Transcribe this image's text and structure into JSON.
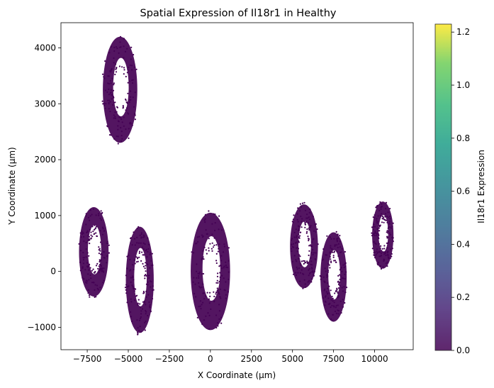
{
  "chart_data": {
    "type": "scatter",
    "title": "Spatial Expression of Il18r1 in Healthy",
    "xlabel": "X Coordinate (µm)",
    "ylabel": "Y Coordinate (µm)",
    "xlim": [
      -9100,
      12350
    ],
    "ylim": [
      -1400,
      4450
    ],
    "xticks": [
      -7500,
      -5000,
      -2500,
      0,
      2500,
      5000,
      7500,
      10000
    ],
    "xtick_labels": [
      "−7500",
      "−5000",
      "−2500",
      "0",
      "2500",
      "5000",
      "7500",
      "10000"
    ],
    "yticks": [
      -1000,
      0,
      1000,
      2000,
      3000,
      4000
    ],
    "ytick_labels": [
      "−1000",
      "0",
      "1000",
      "2000",
      "3000",
      "4000"
    ],
    "grid": false,
    "colorbar": {
      "label": "Il18r1 Expression",
      "range": [
        0,
        1.23
      ],
      "ticks": [
        0.0,
        0.2,
        0.4,
        0.6,
        0.8,
        1.0,
        1.2
      ],
      "tick_labels": [
        "0.0",
        "0.2",
        "0.4",
        "0.6",
        "0.8",
        "1.0",
        "1.2"
      ],
      "colormap": "viridis"
    },
    "point_color": "#440154",
    "expression_value": 0.0,
    "tissue_sections": [
      {
        "cx": -5500,
        "cy": 3250,
        "rx": 1050,
        "ry": 950
      },
      {
        "cx": -7100,
        "cy": 350,
        "rx": 900,
        "ry": 800
      },
      {
        "cx": -4300,
        "cy": -150,
        "rx": 850,
        "ry": 950
      },
      {
        "cx": 0,
        "cy": 0,
        "rx": 1200,
        "ry": 1050
      },
      {
        "cx": 5700,
        "cy": 450,
        "rx": 850,
        "ry": 750
      },
      {
        "cx": 7500,
        "cy": -100,
        "rx": 800,
        "ry": 800
      },
      {
        "cx": 10500,
        "cy": 650,
        "rx": 650,
        "ry": 600
      }
    ]
  }
}
